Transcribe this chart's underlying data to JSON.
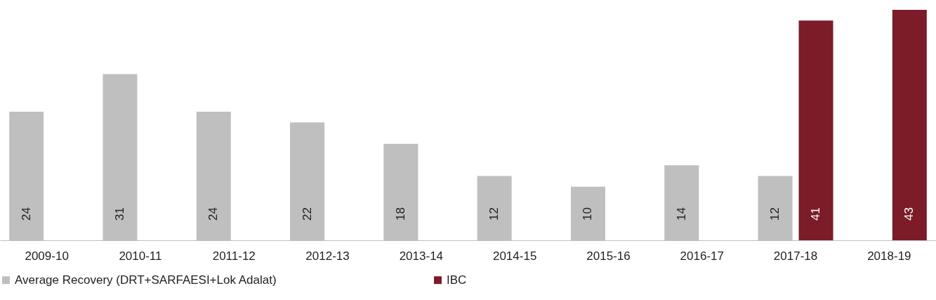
{
  "chart_data": {
    "type": "bar",
    "categories": [
      "2009-10",
      "2010-11",
      "2011-12",
      "2012-13",
      "2013-14",
      "2014-15",
      "2015-16",
      "2016-17",
      "2017-18",
      "2018-19"
    ],
    "series": [
      {
        "name": "Average Recovery (DRT+SARFAESI+Lok Adalat)",
        "color": "#bfbfbf",
        "values": [
          24,
          31,
          24,
          22,
          18,
          12,
          10,
          14,
          12,
          null
        ]
      },
      {
        "name": "IBC",
        "color": "#7b1c28",
        "values": [
          null,
          null,
          null,
          null,
          null,
          null,
          null,
          null,
          41,
          43
        ]
      }
    ],
    "data_labels": true,
    "legend": "bottom",
    "grid": false
  }
}
